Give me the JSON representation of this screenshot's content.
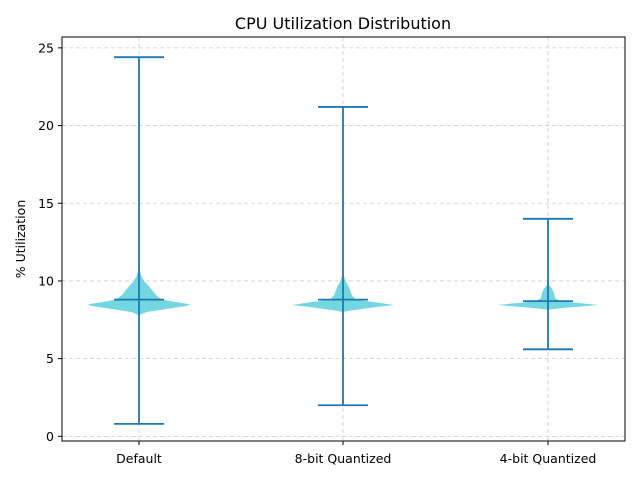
{
  "chart_data": {
    "type": "violin",
    "title": "CPU Utilization Distribution",
    "xlabel": "",
    "ylabel": "% Utilization",
    "ylim": [
      -0.3,
      25.7
    ],
    "yticks": [
      0,
      5,
      10,
      15,
      20,
      25
    ],
    "grid": true,
    "colors": {
      "body": "#5bd0dc",
      "line": "#1f77b4"
    },
    "categories": [
      "Default",
      "8-bit Quantized",
      "4-bit Quantized"
    ],
    "series": [
      {
        "category": "Default",
        "min": 0.8,
        "max": 24.4,
        "median": 8.8,
        "density": [
          [
            7.8,
            0.0
          ],
          [
            8.0,
            0.15
          ],
          [
            8.2,
            0.55
          ],
          [
            8.4,
            0.95
          ],
          [
            8.5,
            1.0
          ],
          [
            8.6,
            0.8
          ],
          [
            8.8,
            0.45
          ],
          [
            9.1,
            0.33
          ],
          [
            9.4,
            0.26
          ],
          [
            9.7,
            0.18
          ],
          [
            10.0,
            0.1
          ],
          [
            10.3,
            0.05
          ],
          [
            10.6,
            0.02
          ],
          [
            10.9,
            0.0
          ]
        ]
      },
      {
        "category": "8-bit Quantized",
        "min": 2.0,
        "max": 21.2,
        "median": 8.8,
        "density": [
          [
            8.0,
            0.0
          ],
          [
            8.1,
            0.15
          ],
          [
            8.3,
            0.6
          ],
          [
            8.45,
            1.0
          ],
          [
            8.6,
            0.7
          ],
          [
            8.8,
            0.25
          ],
          [
            9.1,
            0.17
          ],
          [
            9.4,
            0.14
          ],
          [
            9.7,
            0.1
          ],
          [
            10.0,
            0.05
          ],
          [
            10.3,
            0.02
          ],
          [
            10.6,
            0.0
          ]
        ]
      },
      {
        "category": "4-bit Quantized",
        "min": 5.6,
        "max": 14.0,
        "median": 8.7,
        "density": [
          [
            8.15,
            0.0
          ],
          [
            8.25,
            0.25
          ],
          [
            8.4,
            0.8
          ],
          [
            8.45,
            1.0
          ],
          [
            8.55,
            0.7
          ],
          [
            8.7,
            0.25
          ],
          [
            8.9,
            0.14
          ],
          [
            9.2,
            0.12
          ],
          [
            9.5,
            0.08
          ],
          [
            9.7,
            0.03
          ],
          [
            9.9,
            0.0
          ]
        ]
      }
    ]
  }
}
